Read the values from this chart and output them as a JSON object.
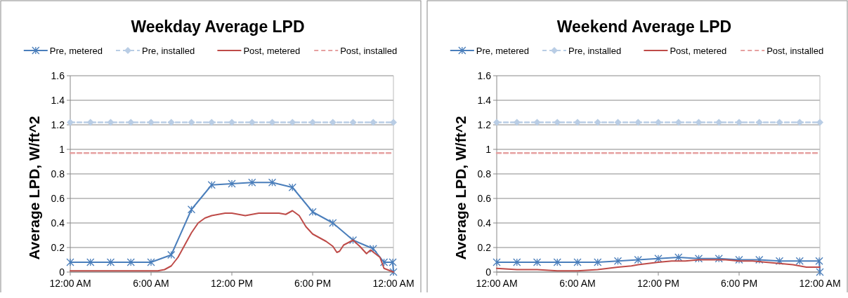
{
  "chart_data": [
    {
      "type": "line",
      "title": "Weekday Average LPD",
      "ylabel": "Average LPD, W/ft^2",
      "xlim": [
        0,
        24
      ],
      "xticks": [
        {
          "value": 0,
          "label": "12:00 AM"
        },
        {
          "value": 6,
          "label": "6:00 AM"
        },
        {
          "value": 12,
          "label": "12:00 PM"
        },
        {
          "value": 18,
          "label": "6:00 PM"
        },
        {
          "value": 24,
          "label": "12:00 AM"
        }
      ],
      "ylim": [
        0,
        1.6
      ],
      "yticks": [
        0,
        0.2,
        0.4,
        0.6,
        0.8,
        1,
        1.2,
        1.4,
        1.6
      ],
      "grid": "y",
      "legend": "top",
      "series": [
        {
          "name": "Pre, metered",
          "color": "#4a7ebb",
          "marker": "cross",
          "line_style": "solid",
          "x": [
            0,
            1.5,
            3,
            4.5,
            6,
            7.5,
            9,
            10.5,
            12,
            13.5,
            15,
            16.5,
            18,
            19.5,
            21,
            22.5,
            23.3,
            23.95,
            24
          ],
          "values": [
            0.08,
            0.08,
            0.08,
            0.08,
            0.08,
            0.14,
            0.51,
            0.71,
            0.72,
            0.73,
            0.73,
            0.69,
            0.49,
            0.4,
            0.26,
            0.19,
            0.08,
            0.08,
            0
          ]
        },
        {
          "name": "Pre, installed",
          "color": "#b9cde5",
          "marker": "diamond",
          "line_style": "dashed",
          "x": [
            0,
            1.5,
            3,
            4.5,
            6,
            7.5,
            9,
            10.5,
            12,
            13.5,
            15,
            16.5,
            18,
            19.5,
            21,
            22.5,
            24
          ],
          "values": [
            1.22,
            1.22,
            1.22,
            1.22,
            1.22,
            1.22,
            1.22,
            1.22,
            1.22,
            1.22,
            1.22,
            1.22,
            1.22,
            1.22,
            1.22,
            1.22,
            1.22
          ]
        },
        {
          "name": "Post, metered",
          "color": "#be4b48",
          "marker": "none",
          "line_style": "solid",
          "x": [
            0,
            6,
            6.5,
            7,
            7.5,
            8,
            8.5,
            9,
            9.5,
            10,
            10.5,
            11,
            11.5,
            12,
            12.5,
            13,
            13.5,
            14,
            14.5,
            15,
            15.5,
            16,
            16.5,
            17,
            17.5,
            18,
            18.5,
            19,
            19.5,
            19.8,
            20,
            20.3,
            21,
            21.5,
            22,
            22.3,
            23,
            23.3,
            24
          ],
          "values": [
            0.01,
            0.01,
            0.01,
            0.02,
            0.05,
            0.12,
            0.22,
            0.32,
            0.4,
            0.44,
            0.46,
            0.47,
            0.48,
            0.48,
            0.47,
            0.46,
            0.47,
            0.48,
            0.48,
            0.48,
            0.48,
            0.47,
            0.5,
            0.46,
            0.37,
            0.31,
            0.28,
            0.25,
            0.21,
            0.16,
            0.17,
            0.22,
            0.26,
            0.21,
            0.15,
            0.18,
            0.12,
            0.03,
            0
          ]
        },
        {
          "name": "Post, installed",
          "color": "#e6a0a0",
          "marker": "none",
          "line_style": "dashed",
          "x": [
            0,
            24
          ],
          "values": [
            0.97,
            0.97
          ]
        }
      ]
    },
    {
      "type": "line",
      "title": "Weekend Average LPD",
      "ylabel": "Average LPD, W/ft^2",
      "xlim": [
        0,
        24
      ],
      "xticks": [
        {
          "value": 0,
          "label": "12:00 AM"
        },
        {
          "value": 6,
          "label": "6:00 AM"
        },
        {
          "value": 12,
          "label": "12:00 PM"
        },
        {
          "value": 18,
          "label": "6:00 PM"
        },
        {
          "value": 24,
          "label": "12:00 AM"
        }
      ],
      "ylim": [
        0,
        1.6
      ],
      "yticks": [
        0,
        0.2,
        0.4,
        0.6,
        0.8,
        1,
        1.2,
        1.4,
        1.6
      ],
      "grid": "y",
      "legend": "top",
      "series": [
        {
          "name": "Pre, metered",
          "color": "#4a7ebb",
          "marker": "cross",
          "line_style": "solid",
          "x": [
            0,
            1.5,
            3,
            4.5,
            6,
            7.5,
            9,
            10.5,
            12,
            13.5,
            15,
            16.5,
            18,
            19.5,
            21,
            22.5,
            23.95,
            24
          ],
          "values": [
            0.08,
            0.08,
            0.08,
            0.08,
            0.08,
            0.08,
            0.09,
            0.1,
            0.11,
            0.12,
            0.11,
            0.11,
            0.1,
            0.1,
            0.09,
            0.09,
            0.09,
            0
          ]
        },
        {
          "name": "Pre, installed",
          "color": "#b9cde5",
          "marker": "diamond",
          "line_style": "dashed",
          "x": [
            0,
            1.5,
            3,
            4.5,
            6,
            7.5,
            9,
            10.5,
            12,
            13.5,
            15,
            16.5,
            18,
            19.5,
            21,
            22.5,
            24
          ],
          "values": [
            1.22,
            1.22,
            1.22,
            1.22,
            1.22,
            1.22,
            1.22,
            1.22,
            1.22,
            1.22,
            1.22,
            1.22,
            1.22,
            1.22,
            1.22,
            1.22,
            1.22
          ]
        },
        {
          "name": "Post, metered",
          "color": "#be4b48",
          "marker": "none",
          "line_style": "solid",
          "x": [
            0,
            1.5,
            3,
            4.5,
            6,
            7.5,
            9,
            10,
            10.5,
            12,
            13,
            14,
            15,
            16,
            17,
            18,
            19,
            20,
            21,
            22,
            23,
            24
          ],
          "values": [
            0.03,
            0.02,
            0.02,
            0.01,
            0.01,
            0.02,
            0.04,
            0.05,
            0.06,
            0.08,
            0.09,
            0.09,
            0.1,
            0.1,
            0.1,
            0.09,
            0.09,
            0.08,
            0.07,
            0.06,
            0.04,
            0.04
          ]
        },
        {
          "name": "Post, installed",
          "color": "#e6a0a0",
          "marker": "none",
          "line_style": "dashed",
          "x": [
            0,
            24
          ],
          "values": [
            0.97,
            0.97
          ]
        }
      ]
    }
  ]
}
